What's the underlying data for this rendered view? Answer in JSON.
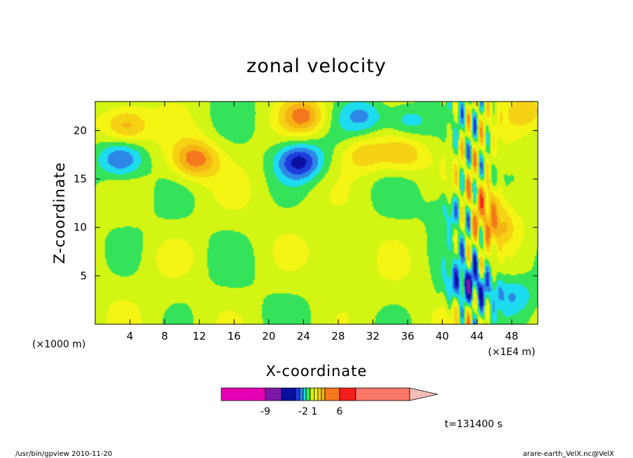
{
  "chart_data": {
    "type": "heatmap",
    "title": "zonal velocity",
    "xlabel": "X-coordinate",
    "ylabel": "Z-coordinate",
    "x_unit": "(×1E4 m)",
    "y_unit": "(×1000 m)",
    "xlim": [
      0,
      51
    ],
    "ylim": [
      0,
      23
    ],
    "x_ticks": [
      "4",
      "8",
      "12",
      "16",
      "20",
      "24",
      "28",
      "32",
      "36",
      "40",
      "44",
      "48"
    ],
    "y_ticks": [
      "5",
      "10",
      "15",
      "20"
    ],
    "time_label": "t=131400 s",
    "colorbar": {
      "levels": [
        -15,
        -9,
        -6,
        -4,
        -3,
        -2,
        -1,
        0,
        1,
        2,
        3,
        4,
        6,
        9,
        15
      ],
      "labels": [
        "-9",
        "-2",
        "1",
        "6"
      ],
      "colors": [
        "#e600b4",
        "#7d17a5",
        "#0a0fa0",
        "#1e3cdc",
        "#2e87e6",
        "#1edcf0",
        "#34e35a",
        "#d2f514",
        "#f5f514",
        "#f5d214",
        "#f5b414",
        "#f5781e",
        "#f51e1e",
        "#fa7868",
        "#f5bdb8"
      ]
    },
    "field_features": [
      {
        "x": 3.5,
        "z": 20.5,
        "u": 3.5
      },
      {
        "x": 11.5,
        "z": 17.0,
        "u": 4.2
      },
      {
        "x": 23.5,
        "z": 16.8,
        "u": -4.5
      },
      {
        "x": 24.0,
        "z": 21.5,
        "u": 4.0
      },
      {
        "x": 31.0,
        "z": 17.5,
        "u": 2.5
      },
      {
        "x": 35.5,
        "z": 17.5,
        "u": 2.5
      },
      {
        "x": 3.0,
        "z": 17.0,
        "u": -3.5
      },
      {
        "x": 31.0,
        "z": 21.5,
        "u": -2.5
      },
      {
        "x": 36.0,
        "z": 21.0,
        "u": -2.5
      },
      {
        "x": 44.5,
        "z": 12.5,
        "u": 4.0
      },
      {
        "x": 42.0,
        "z": 12.0,
        "u": -3.0
      },
      {
        "x": 43.0,
        "z": 4.0,
        "u": -4.0
      },
      {
        "x": 46.0,
        "z": 10.0,
        "u": 3.0
      },
      {
        "x": 48.0,
        "z": 3.0,
        "u": -2.0
      },
      {
        "x": 50.0,
        "z": 22.0,
        "u": 2.5
      },
      {
        "x": 9.0,
        "z": 7.0,
        "u": 0.8
      },
      {
        "x": 27.0,
        "z": 7.0,
        "u": 0.6
      }
    ]
  },
  "footer": {
    "left": "/usr/bin/gpview   2010-11-20",
    "right": "arare-earth_VelX.nc@VelX"
  }
}
